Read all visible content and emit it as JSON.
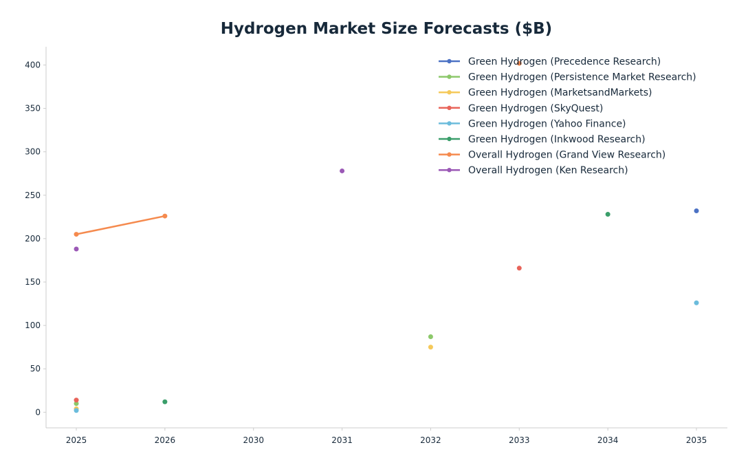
{
  "chart_data": {
    "type": "line",
    "title": "Hydrogen Market Size Forecasts ($B)",
    "xlabel": "",
    "ylabel": "",
    "categories": [
      "2025",
      "2026",
      "2030",
      "2031",
      "2032",
      "2033",
      "2034",
      "2035"
    ],
    "yticks": [
      0,
      50,
      100,
      150,
      200,
      250,
      300,
      350,
      400
    ],
    "ylim": [
      -18,
      421
    ],
    "grid": false,
    "legend": "top-right",
    "series": [
      {
        "name": "Green Hydrogen (Precedence Research)",
        "color": "#4c72c4",
        "points": [
          {
            "x": "2035",
            "y": 232
          }
        ]
      },
      {
        "name": "Green Hydrogen (Persistence Market Research)",
        "color": "#8cc86a",
        "points": [
          {
            "x": "2025",
            "y": 10
          },
          {
            "x": "2032",
            "y": 87
          }
        ]
      },
      {
        "name": "Green Hydrogen (MarketsandMarkets)",
        "color": "#f5c95a",
        "points": [
          {
            "x": "2025",
            "y": 4
          },
          {
            "x": "2032",
            "y": 75
          }
        ]
      },
      {
        "name": "Green Hydrogen (SkyQuest)",
        "color": "#e8645a",
        "points": [
          {
            "x": "2025",
            "y": 14
          },
          {
            "x": "2033",
            "y": 166
          }
        ]
      },
      {
        "name": "Green Hydrogen (Yahoo Finance)",
        "color": "#6bbcdc",
        "points": [
          {
            "x": "2025",
            "y": 2
          },
          {
            "x": "2035",
            "y": 126
          }
        ]
      },
      {
        "name": "Green Hydrogen (Inkwood Research)",
        "color": "#3a9e6a",
        "points": [
          {
            "x": "2026",
            "y": 12
          },
          {
            "x": "2034",
            "y": 228
          }
        ]
      },
      {
        "name": "Overall Hydrogen (Grand View Research)",
        "color": "#f58a4e",
        "points": [
          {
            "x": "2025",
            "y": 205
          },
          {
            "x": "2026",
            "y": 226
          },
          {
            "x": "2033",
            "y": 402
          }
        ]
      },
      {
        "name": "Overall Hydrogen (Ken Research)",
        "color": "#9b59b6",
        "points": [
          {
            "x": "2025",
            "y": 188
          },
          {
            "x": "2031",
            "y": 278
          }
        ]
      }
    ]
  }
}
